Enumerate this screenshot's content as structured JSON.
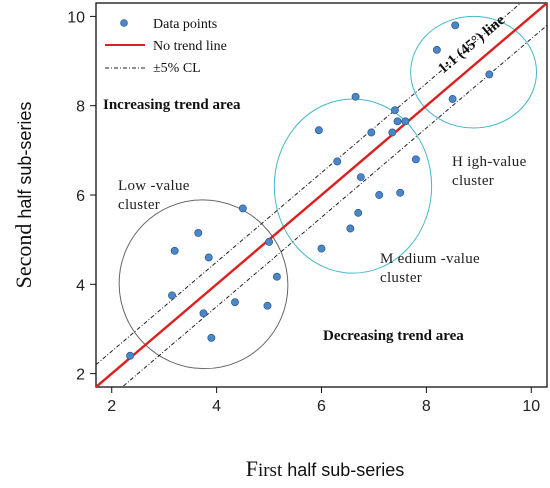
{
  "chart_data": {
    "type": "scatter",
    "xlabel_parts": [
      "F",
      "irst",
      " half sub-series"
    ],
    "ylabel_parts": [
      "Second",
      "  half sub-series"
    ],
    "xlim": [
      1.7,
      10.3
    ],
    "ylim": [
      1.7,
      10.3
    ],
    "x_ticks": [
      2,
      4,
      6,
      8,
      10
    ],
    "y_ticks": [
      2,
      4,
      6,
      8,
      10
    ],
    "x_tick_labels": [
      "2",
      "4",
      "6",
      "8",
      "10"
    ],
    "y_tick_labels": [
      "2",
      "4",
      "6",
      "8",
      "10"
    ],
    "grid": false,
    "legend_position": "top-left",
    "legend": {
      "points_label": "Data points",
      "line_label": "No trend line",
      "cl_label": "±5% CL"
    },
    "point_color": "#4a86c8",
    "line_color": "#dd1f1f",
    "series": [
      {
        "x": [
          2.35,
          3.15,
          3.2,
          3.65,
          3.75,
          3.85,
          3.9,
          4.35,
          4.5,
          4.97,
          5.0,
          5.15,
          5.95,
          6.0,
          6.3,
          6.55,
          6.65,
          6.7,
          6.75,
          6.95,
          7.1,
          7.35,
          7.4,
          7.45,
          7.5,
          7.6,
          7.8,
          8.2,
          8.5,
          8.55,
          9.2
        ],
        "y": [
          2.4,
          3.75,
          4.75,
          5.15,
          3.35,
          4.6,
          2.8,
          3.6,
          5.7,
          3.52,
          4.95,
          4.17,
          7.45,
          4.8,
          6.75,
          5.25,
          8.2,
          5.6,
          6.4,
          7.4,
          6.0,
          7.4,
          7.9,
          7.65,
          6.05,
          7.65,
          6.8,
          9.25,
          8.15,
          9.8,
          8.7
        ]
      }
    ],
    "reference_line": {
      "slope": 1,
      "intercept": 0,
      "label": "1:1 (45°) line"
    },
    "confidence_band": {
      "offset": 0.5
    },
    "clusters": [
      {
        "name": "low",
        "label_lines": [
          "Low -value",
          "cluster"
        ],
        "color": "#666666",
        "center": [
          3.75,
          4.0
        ],
        "radii": [
          1.6,
          1.9
        ],
        "rotation": -45
      },
      {
        "name": "medium",
        "label_lines": [
          "M edium -value",
          "cluster"
        ],
        "color": "#44b8c8",
        "center": [
          6.6,
          6.2
        ],
        "radii": [
          1.5,
          1.95
        ],
        "rotation": 0
      },
      {
        "name": "high",
        "label_lines": [
          "H igh-value",
          "cluster"
        ],
        "color": "#44b8c8",
        "center": [
          8.9,
          8.75
        ],
        "radii": [
          1.2,
          1.25
        ],
        "rotation": 0
      }
    ],
    "area_labels": [
      "Increasing trend area",
      "Decreasing trend area"
    ]
  }
}
